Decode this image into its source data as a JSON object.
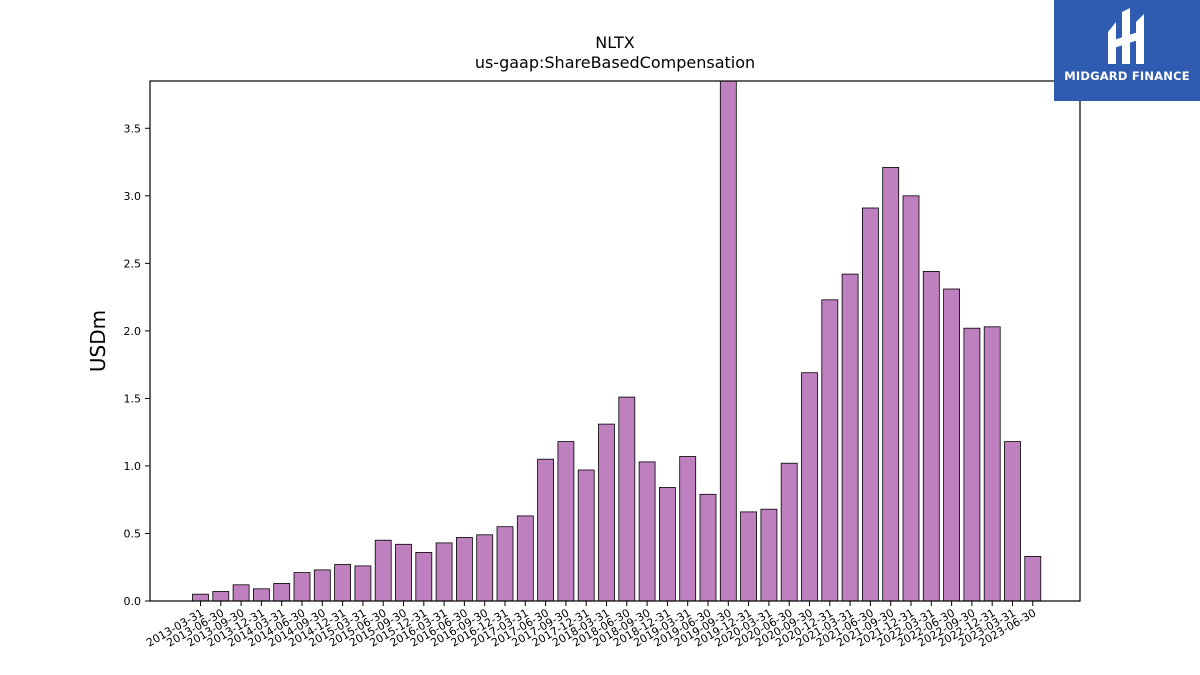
{
  "chart_data": {
    "type": "bar",
    "title": "NLTX",
    "subtitle": "us-gaap:ShareBasedCompensation",
    "xlabel": "",
    "ylabel": "USDm",
    "ylim": [
      0,
      3.85
    ],
    "yticks": [
      "0.0",
      "0.5",
      "1.0",
      "1.5",
      "2.0",
      "2.5",
      "3.0",
      "3.5"
    ],
    "grid": false,
    "categories": [
      "2013-03-31",
      "2013-06-30",
      "2013-09-30",
      "2013-12-31",
      "2014-03-31",
      "2014-06-30",
      "2014-09-30",
      "2014-12-31",
      "2015-03-31",
      "2015-06-30",
      "2015-09-30",
      "2015-12-31",
      "2016-03-31",
      "2016-06-30",
      "2016-09-30",
      "2016-12-31",
      "2017-03-31",
      "2017-06-30",
      "2017-09-30",
      "2017-12-31",
      "2018-03-31",
      "2018-06-30",
      "2018-09-30",
      "2018-12-31",
      "2019-03-31",
      "2019-06-30",
      "2019-09-30",
      "2019-12-31",
      "2020-03-31",
      "2020-06-30",
      "2020-09-30",
      "2020-12-31",
      "2021-03-31",
      "2021-06-30",
      "2021-09-30",
      "2021-12-31",
      "2022-03-31",
      "2022-06-30",
      "2022-09-30",
      "2022-12-31",
      "2023-03-31",
      "2023-06-30"
    ],
    "values": [
      0.05,
      0.07,
      0.12,
      0.09,
      0.13,
      0.21,
      0.23,
      0.27,
      0.26,
      0.45,
      0.42,
      0.36,
      0.43,
      0.47,
      0.49,
      0.55,
      0.63,
      1.05,
      1.18,
      0.97,
      1.31,
      1.51,
      1.03,
      0.84,
      1.07,
      0.79,
      3.85,
      0.66,
      0.68,
      1.02,
      1.69,
      2.23,
      2.42,
      2.91,
      3.21,
      3.0,
      2.44,
      2.31,
      2.02,
      2.03,
      1.18,
      0.33
    ],
    "bar_color": "#bf80bf",
    "bar_edge_color": "#000000"
  },
  "logo": {
    "text": "MIDGARD FINANCE",
    "background": "#2f5bb0"
  }
}
